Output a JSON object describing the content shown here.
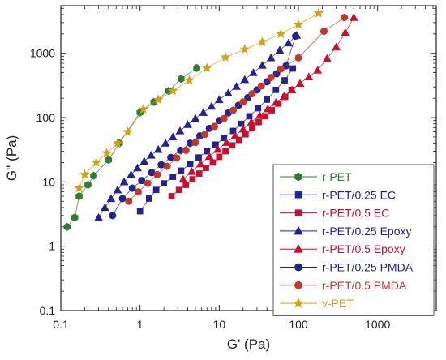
{
  "chart_data": {
    "type": "scatter",
    "xlabel": "G' (Pa)",
    "ylabel": "G'' (Pa)",
    "xscale": "log",
    "yscale": "log",
    "xlim": [
      0.1,
      5500
    ],
    "ylim": [
      0.1,
      5500
    ],
    "xticks": [
      0.1,
      1,
      10,
      100,
      1000
    ],
    "yticks": [
      0.1,
      1,
      10,
      100,
      1000
    ],
    "xtick_labels": [
      "0.1",
      "1",
      "10",
      "100",
      "1000"
    ],
    "ytick_labels": [
      "0.1",
      "1",
      "10",
      "100",
      "1000"
    ],
    "legend_position": "bottom-right",
    "grid": false,
    "series": [
      {
        "name": "r-PET",
        "marker": "hexagon",
        "color": "#2e7d32",
        "x": [
          0.12,
          0.15,
          0.17,
          0.22,
          0.26,
          0.4,
          0.55,
          1.0,
          1.5,
          2.3,
          3.3,
          5.2
        ],
        "y": [
          2.0,
          2.8,
          6.0,
          9.0,
          12.5,
          22,
          40,
          120,
          175,
          260,
          400,
          590
        ]
      },
      {
        "name": "r-PET/0.25 EC",
        "marker": "square",
        "color": "#23238e",
        "x": [
          1.0,
          1.3,
          1.6,
          2.0,
          2.6,
          3.3,
          4.3,
          5.5,
          7.0,
          9.0,
          11.5,
          15,
          19,
          24,
          31,
          40,
          52,
          67,
          85
        ],
        "y": [
          3.5,
          5.5,
          7.5,
          9.5,
          12,
          15,
          19,
          24,
          30,
          38,
          48,
          62,
          80,
          105,
          140,
          190,
          270,
          380,
          580
        ]
      },
      {
        "name": "r-PET/0.5 EC",
        "marker": "square",
        "color": "#c8102e",
        "x": [
          2.5,
          3.1,
          3.8,
          4.6,
          5.6,
          6.8,
          8.3,
          10,
          12,
          14.6,
          17.8,
          21.5,
          26,
          31.5,
          38,
          46,
          56,
          68,
          82
        ],
        "y": [
          6,
          7.5,
          9,
          11,
          13.5,
          16.5,
          20,
          24.5,
          30,
          37,
          45,
          55,
          68,
          85,
          105,
          130,
          165,
          210,
          270
        ]
      },
      {
        "name": "r-PET/0.25 Epoxy",
        "marker": "triangle",
        "color": "#23238e",
        "x": [
          0.3,
          0.36,
          0.43,
          0.52,
          0.63,
          0.77,
          0.93,
          1.13,
          1.38,
          1.7,
          2.1,
          2.6,
          3.2,
          4.0,
          5.0,
          6.3,
          8.0,
          10,
          13,
          16.5,
          21,
          27,
          35,
          45,
          58,
          75,
          95
        ],
        "y": [
          2.8,
          4,
          5.5,
          7.5,
          10,
          13,
          16.5,
          21,
          26,
          32,
          40,
          50,
          62,
          78,
          97,
          120,
          150,
          190,
          240,
          305,
          390,
          500,
          650,
          850,
          1120,
          1450,
          1900
        ]
      },
      {
        "name": "r-PET/0.5 Epoxy",
        "marker": "triangle",
        "color": "#c8102e",
        "x": [
          3.5,
          4.5,
          5.8,
          7.5,
          9.6,
          12.3,
          15.8,
          20,
          25.5,
          32.5,
          41,
          52,
          66,
          83,
          105,
          135,
          175,
          230,
          300,
          390,
          500
        ],
        "y": [
          11,
          14.5,
          19,
          25,
          32,
          41,
          52,
          66,
          85,
          108,
          137,
          172,
          215,
          270,
          340,
          430,
          545,
          830,
          1250,
          2100,
          3600
        ]
      },
      {
        "name": "r-PET/0.25 PMDA",
        "marker": "circle",
        "color": "#23238e",
        "x": [
          0.45,
          0.6,
          0.8,
          1.05,
          1.4,
          1.85,
          2.45,
          3.25,
          4.3,
          5.7,
          7.5,
          10,
          13,
          17.5,
          23,
          30,
          40,
          53,
          70,
          92
        ],
        "y": [
          3,
          5.5,
          8,
          10.5,
          14,
          18.5,
          24,
          31,
          40,
          52,
          68,
          90,
          118,
          155,
          205,
          270,
          360,
          480,
          640,
          1850
        ]
      },
      {
        "name": "r-PET/0.5 PMDA",
        "marker": "circle",
        "color": "#c0392b",
        "x": [
          0.72,
          0.95,
          1.25,
          1.65,
          2.2,
          2.9,
          3.8,
          5.0,
          6.6,
          8.7,
          11.5,
          15,
          20,
          26,
          34,
          45,
          60,
          100,
          210,
          380
        ],
        "y": [
          5,
          7,
          9.5,
          13,
          17.5,
          23.5,
          31,
          41,
          55,
          73,
          97,
          130,
          175,
          235,
          310,
          420,
          570,
          850,
          2200,
          3600
        ]
      },
      {
        "name": "v-PET",
        "marker": "star",
        "color": "#d4a01a",
        "x": [
          0.17,
          0.2,
          0.28,
          0.38,
          0.52,
          0.7,
          1.1,
          1.7,
          2.6,
          4.2,
          7,
          12,
          21,
          35,
          60,
          100,
          180
        ],
        "y": [
          8,
          13,
          20,
          28,
          40,
          60,
          135,
          190,
          260,
          380,
          590,
          870,
          1150,
          1500,
          2000,
          2800,
          4200
        ]
      }
    ]
  }
}
